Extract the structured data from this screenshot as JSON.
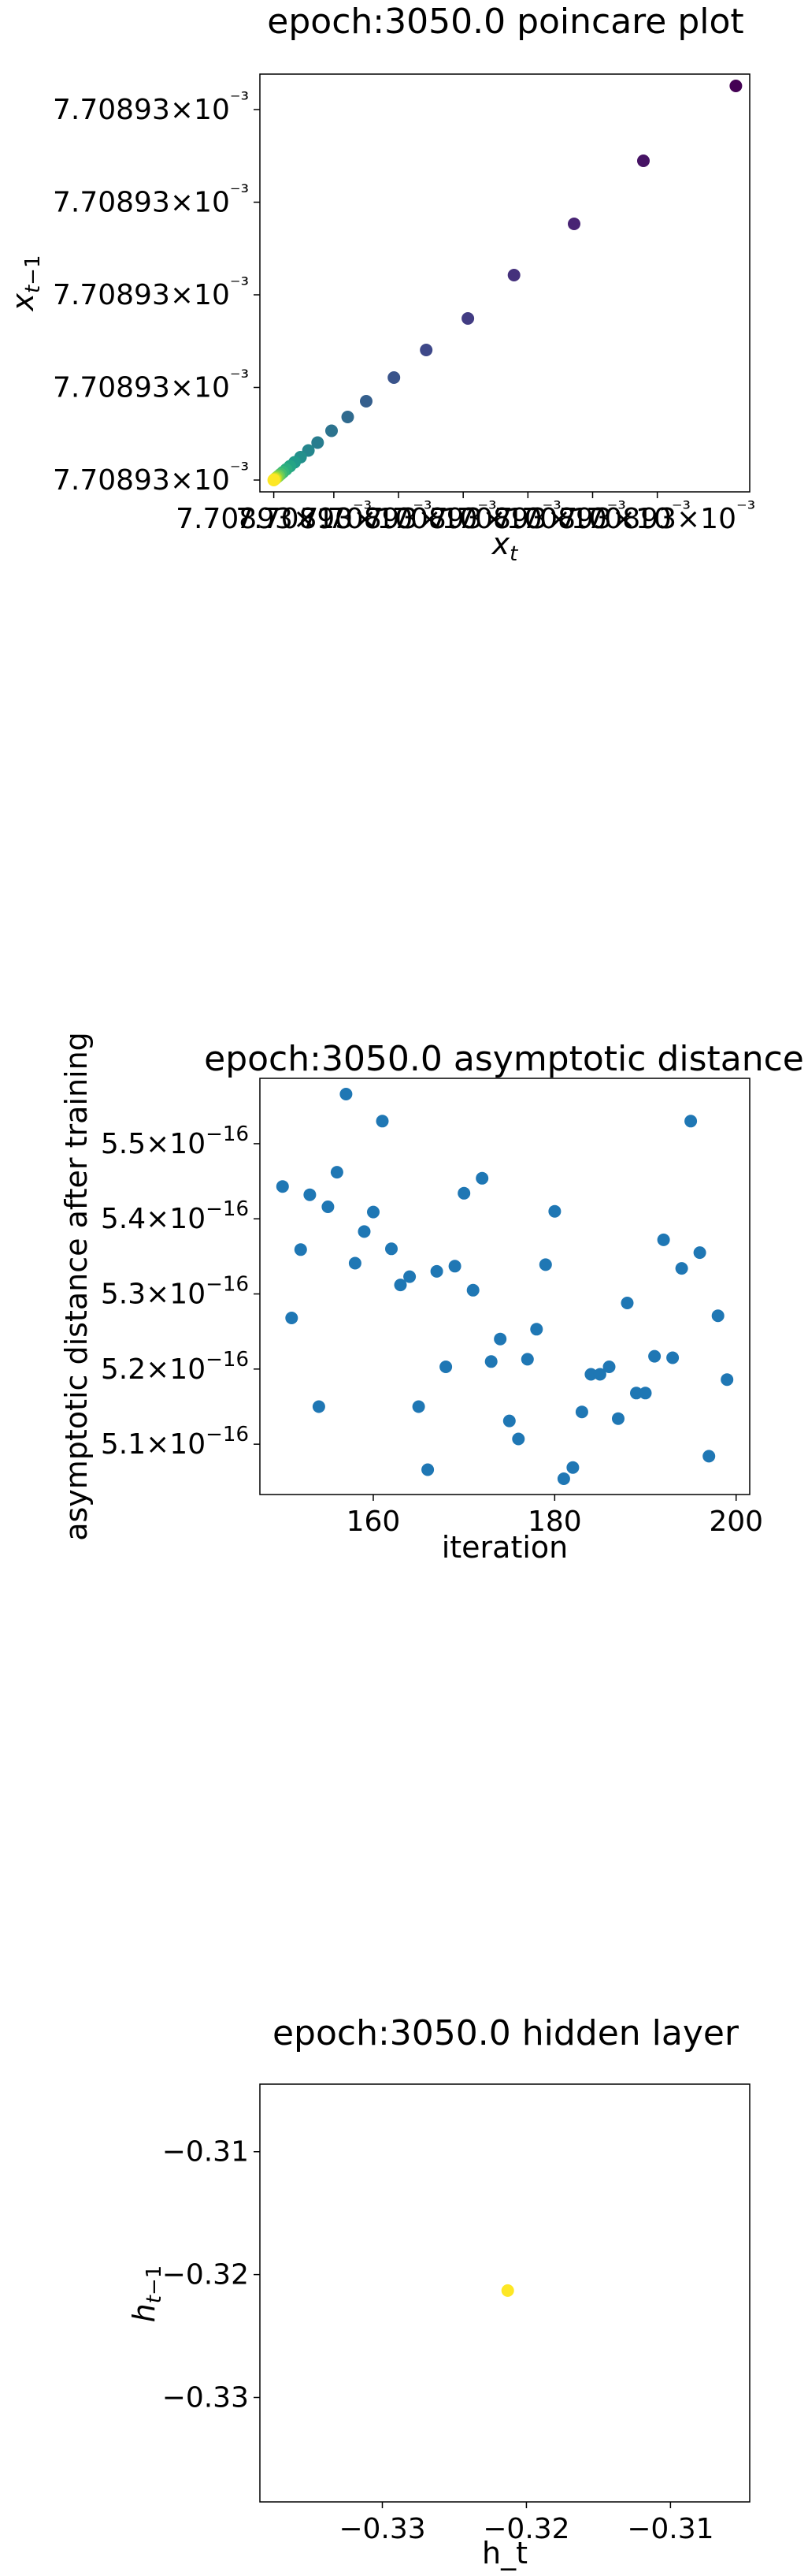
{
  "chart_data": [
    {
      "type": "scatter",
      "title": "epoch:3050.0 poincare plot",
      "xlabel": "x_t",
      "ylabel": "x_t-1",
      "colormap": "viridis",
      "xticks": [
        "7.70893×10⁻³",
        "7.70893×10⁻³",
        "7.70893×10⁻³",
        "7.70893×10⁻³",
        "7.70893×10⁻³",
        "7.70893×10⁻³",
        "7.70893×10⁻³"
      ],
      "yticks": [
        "7.70893×10⁻³",
        "7.70893×10⁻³",
        "7.70893×10⁻³",
        "7.70893×10⁻³",
        "7.70893×10⁻³"
      ],
      "xlim": [
        -0.03,
        1.03
      ],
      "ylim": [
        -0.03,
        1.03
      ],
      "x_unit_note_hidden": "",
      "points": [
        {
          "x": 1.0,
          "y": 1.0,
          "c": 0.0
        },
        {
          "x": 0.8,
          "y": 0.81,
          "c": 0.05
        },
        {
          "x": 0.65,
          "y": 0.65,
          "c": 0.1
        },
        {
          "x": 0.52,
          "y": 0.52,
          "c": 0.14
        },
        {
          "x": 0.42,
          "y": 0.41,
          "c": 0.18
        },
        {
          "x": 0.33,
          "y": 0.33,
          "c": 0.22
        },
        {
          "x": 0.26,
          "y": 0.26,
          "c": 0.26
        },
        {
          "x": 0.2,
          "y": 0.2,
          "c": 0.3
        },
        {
          "x": 0.16,
          "y": 0.16,
          "c": 0.34
        },
        {
          "x": 0.125,
          "y": 0.125,
          "c": 0.38
        },
        {
          "x": 0.095,
          "y": 0.095,
          "c": 0.42
        },
        {
          "x": 0.075,
          "y": 0.075,
          "c": 0.46
        },
        {
          "x": 0.058,
          "y": 0.058,
          "c": 0.5
        },
        {
          "x": 0.045,
          "y": 0.045,
          "c": 0.54
        },
        {
          "x": 0.035,
          "y": 0.035,
          "c": 0.58
        },
        {
          "x": 0.027,
          "y": 0.027,
          "c": 0.62
        },
        {
          "x": 0.02,
          "y": 0.02,
          "c": 0.66
        },
        {
          "x": 0.015,
          "y": 0.015,
          "c": 0.7
        },
        {
          "x": 0.011,
          "y": 0.011,
          "c": 0.75
        },
        {
          "x": 0.008,
          "y": 0.008,
          "c": 0.8
        },
        {
          "x": 0.005,
          "y": 0.005,
          "c": 0.86
        },
        {
          "x": 0.003,
          "y": 0.003,
          "c": 0.92
        },
        {
          "x": 0.001,
          "y": 0.001,
          "c": 0.97
        },
        {
          "x": 0.0,
          "y": 0.0,
          "c": 1.0
        }
      ]
    },
    {
      "type": "scatter",
      "title": "epoch:3050.0 asymptotic distance",
      "xlabel": "iteration",
      "ylabel": "asymptotic distance after training",
      "color": "#1f77b4",
      "xlim": [
        147.5,
        201.5
      ],
      "ylim": [
        5.033,
        5.587
      ],
      "xticks": [
        160,
        180,
        200
      ],
      "ytick_values": [
        5.1,
        5.2,
        5.3,
        5.4,
        5.5
      ],
      "ytick_mantissa": [
        "5.1",
        "5.2",
        "5.3",
        "5.4",
        "5.5"
      ],
      "ytick_suffix": "×10",
      "ytick_exp": "−16",
      "x": [
        150,
        151,
        152,
        153,
        154,
        155,
        156,
        157,
        158,
        159,
        160,
        161,
        162,
        163,
        164,
        165,
        166,
        167,
        168,
        169,
        170,
        171,
        172,
        173,
        174,
        175,
        176,
        177,
        178,
        179,
        180,
        181,
        182,
        183,
        184,
        185,
        186,
        187,
        188,
        189,
        190,
        191,
        192,
        193,
        194,
        195,
        196,
        197,
        198,
        199
      ],
      "y": [
        5.443,
        5.268,
        5.359,
        5.432,
        5.15,
        5.416,
        5.462,
        5.566,
        5.341,
        5.383,
        5.409,
        5.53,
        5.36,
        5.312,
        5.323,
        5.15,
        5.066,
        5.33,
        5.203,
        5.337,
        5.434,
        5.305,
        5.454,
        5.21,
        5.24,
        5.131,
        5.107,
        5.213,
        5.253,
        5.339,
        5.41,
        5.054,
        5.069,
        5.143,
        5.193,
        5.193,
        5.203,
        5.134,
        5.288,
        5.168,
        5.168,
        5.217,
        5.372,
        5.215,
        5.334,
        5.53,
        5.355,
        5.084,
        5.271,
        5.186
      ]
    },
    {
      "type": "scatter",
      "title": "epoch:3050.0 hidden layer",
      "xlabel": "h_t",
      "ylabel": "h_t-1",
      "color": "#fde725",
      "xlim": [
        -0.3385,
        -0.3045
      ],
      "ylim": [
        -0.3385,
        -0.3045
      ],
      "xticks": [
        -0.33,
        -0.32,
        -0.31
      ],
      "xtick_labels": [
        "−0.33",
        "−0.32",
        "−0.31"
      ],
      "yticks": [
        -0.31,
        -0.32,
        -0.33
      ],
      "ytick_labels": [
        "−0.31",
        "−0.32",
        "−0.33"
      ],
      "points": [
        {
          "x": -0.3213,
          "y": -0.3213
        }
      ]
    }
  ]
}
